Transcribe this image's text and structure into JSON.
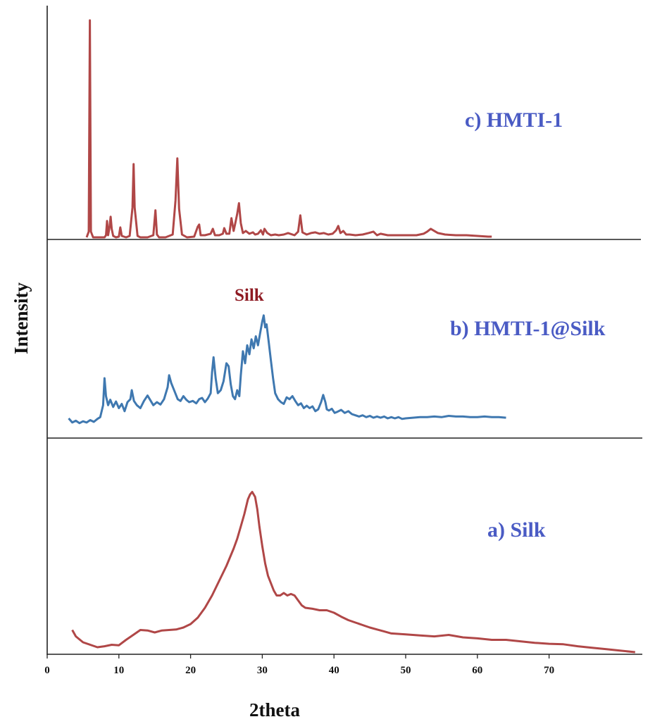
{
  "chart_data": {
    "type": "line",
    "xlabel": "2theta",
    "ylabel": "Intensity",
    "xlim": [
      0,
      83
    ],
    "x_ticks": [
      0,
      10,
      20,
      30,
      40,
      50,
      60,
      70
    ],
    "y_ticks_shown": false,
    "grid": false,
    "legend": "none",
    "layout": "stacked-panels",
    "series": [
      {
        "name": "c) HMTI-1",
        "panel": "top",
        "color": "#b04747",
        "label_color": "#4a5bc4",
        "x": [
          5.5,
          5.8,
          5.95,
          6.1,
          6.4,
          6.8,
          7.5,
          8.0,
          8.2,
          8.35,
          8.5,
          8.7,
          8.85,
          9.0,
          9.2,
          9.6,
          10.0,
          10.2,
          10.4,
          11.0,
          11.5,
          11.9,
          12.05,
          12.2,
          12.6,
          13.0,
          14.0,
          14.8,
          15.1,
          15.3,
          15.6,
          16.5,
          17.5,
          17.9,
          18.15,
          18.4,
          18.8,
          19.5,
          20.5,
          21.0,
          21.2,
          21.4,
          22.0,
          22.8,
          23.1,
          23.4,
          24.0,
          24.5,
          24.7,
          25.0,
          25.4,
          25.7,
          26.0,
          26.2,
          26.5,
          26.75,
          27.0,
          27.3,
          27.7,
          28.2,
          28.7,
          29.0,
          29.4,
          29.8,
          30.1,
          30.3,
          30.7,
          31.2,
          31.8,
          32.3,
          33.0,
          33.6,
          34.5,
          35.0,
          35.3,
          35.6,
          36.2,
          36.8,
          37.4,
          38.0,
          38.6,
          39.2,
          39.8,
          40.3,
          40.6,
          40.9,
          41.3,
          41.7,
          42.2,
          43.0,
          44.0,
          44.8,
          45.5,
          46.0,
          46.5,
          47.5,
          48.5,
          49.5,
          50.5,
          51.5,
          52.5,
          53.0,
          53.5,
          54.0,
          54.5,
          55.5,
          57.0,
          58.5,
          60.0,
          61.5,
          62.0
        ],
        "values": [
          0,
          0.8,
          30.5,
          0.8,
          0,
          0,
          0,
          0,
          0.3,
          2.3,
          0.3,
          1.5,
          2.9,
          1.2,
          0.2,
          0,
          0.1,
          1.4,
          0.2,
          0,
          0.2,
          4.2,
          10.3,
          4.2,
          0.2,
          0,
          0,
          0.3,
          3.8,
          0.4,
          0,
          0,
          0.4,
          5.2,
          11.1,
          4.0,
          0.4,
          0,
          0.1,
          1.5,
          1.8,
          0.3,
          0.3,
          0.5,
          1.2,
          0.3,
          0.3,
          0.5,
          1.3,
          0.5,
          0.5,
          2.7,
          0.9,
          1.8,
          3.3,
          4.8,
          2.0,
          0.6,
          0.9,
          0.5,
          0.7,
          0.4,
          0.5,
          1.0,
          0.4,
          1.2,
          0.6,
          0.3,
          0.4,
          0.3,
          0.4,
          0.6,
          0.3,
          0.8,
          3.1,
          0.7,
          0.4,
          0.6,
          0.7,
          0.5,
          0.6,
          0.4,
          0.5,
          1.0,
          1.6,
          0.6,
          0.9,
          0.4,
          0.4,
          0.3,
          0.4,
          0.6,
          0.8,
          0.3,
          0.5,
          0.3,
          0.3,
          0.3,
          0.3,
          0.3,
          0.5,
          0.8,
          1.2,
          0.9,
          0.6,
          0.4,
          0.3,
          0.3,
          0.2,
          0.1,
          0.1
        ]
      },
      {
        "name": "b) HMTI-1@Silk",
        "panel": "middle",
        "color": "#3f78b0",
        "label_color": "#4a5bc4",
        "x": [
          3.0,
          3.5,
          4.0,
          4.5,
          5.0,
          5.5,
          6.0,
          6.5,
          7.0,
          7.4,
          7.8,
          8.0,
          8.2,
          8.5,
          8.8,
          9.2,
          9.6,
          10.0,
          10.4,
          10.8,
          11.2,
          11.6,
          11.8,
          12.1,
          12.5,
          13.0,
          13.5,
          14.0,
          14.3,
          14.8,
          15.3,
          15.8,
          16.3,
          16.8,
          17.0,
          17.3,
          17.7,
          18.2,
          18.6,
          19.0,
          19.4,
          19.8,
          20.3,
          20.8,
          21.2,
          21.6,
          22.0,
          22.4,
          22.8,
          23.0,
          23.2,
          23.5,
          23.8,
          24.2,
          24.6,
          25.0,
          25.3,
          25.6,
          25.9,
          26.2,
          26.5,
          26.8,
          27.0,
          27.3,
          27.6,
          27.9,
          28.2,
          28.5,
          28.8,
          29.1,
          29.4,
          29.7,
          30.0,
          30.2,
          30.4,
          30.6,
          30.9,
          31.2,
          31.5,
          31.8,
          32.2,
          32.6,
          33.0,
          33.4,
          33.8,
          34.2,
          34.6,
          35.0,
          35.4,
          35.8,
          36.2,
          36.6,
          37.0,
          37.4,
          37.8,
          38.2,
          38.5,
          38.8,
          39.0,
          39.3,
          39.7,
          40.1,
          40.5,
          41.0,
          41.5,
          42.0,
          42.5,
          43.0,
          43.5,
          44.0,
          44.5,
          45.0,
          45.5,
          46.0,
          46.5,
          47.0,
          47.5,
          48.0,
          48.5,
          49.0,
          49.5,
          50.0,
          51.0,
          52.0,
          53.0,
          54.0,
          55.0,
          56.0,
          57.0,
          58.0,
          59.0,
          60.0,
          61.0,
          62.0,
          63.0,
          64.0
        ],
        "values": [
          1.3,
          0.6,
          0.9,
          0.5,
          0.8,
          0.6,
          1.0,
          0.7,
          1.2,
          1.5,
          3.5,
          8.0,
          5.0,
          3.5,
          4.4,
          3.2,
          4.1,
          3.0,
          3.7,
          2.5,
          4.0,
          4.5,
          6.0,
          4.2,
          3.5,
          3.0,
          4.2,
          5.1,
          4.5,
          3.5,
          4.0,
          3.6,
          4.5,
          6.5,
          8.5,
          7.2,
          6.0,
          4.5,
          4.2,
          5.0,
          4.4,
          4.0,
          4.2,
          3.8,
          4.5,
          4.7,
          4.0,
          4.6,
          5.5,
          9.0,
          11.5,
          8.0,
          5.5,
          6.0,
          7.5,
          10.5,
          10.0,
          7.0,
          5.0,
          4.5,
          6.0,
          5.0,
          8.5,
          12.5,
          10.5,
          13.5,
          12.0,
          14.5,
          13.0,
          15.0,
          13.5,
          15.5,
          17.5,
          18.5,
          16.5,
          17.0,
          14.0,
          11.0,
          8.0,
          5.5,
          4.5,
          4.0,
          3.7,
          4.8,
          4.5,
          5.0,
          4.2,
          3.5,
          3.8,
          3.0,
          3.4,
          3.0,
          3.3,
          2.5,
          2.8,
          4.0,
          5.2,
          4.0,
          2.8,
          2.6,
          2.9,
          2.2,
          2.4,
          2.7,
          2.2,
          2.5,
          2.0,
          1.8,
          1.6,
          1.8,
          1.5,
          1.7,
          1.4,
          1.6,
          1.4,
          1.6,
          1.3,
          1.5,
          1.3,
          1.5,
          1.2,
          1.3,
          1.4,
          1.5,
          1.5,
          1.6,
          1.5,
          1.7,
          1.6,
          1.6,
          1.5,
          1.5,
          1.6,
          1.5,
          1.5,
          1.4
        ]
      },
      {
        "name": "a) Silk",
        "panel": "bottom",
        "color": "#b04747",
        "label_color": "#4a5bc4",
        "x": [
          3.5,
          4.0,
          5.0,
          6.0,
          7.0,
          8.0,
          9.0,
          10.0,
          11.0,
          12.0,
          13.0,
          14.0,
          15.0,
          16.0,
          17.0,
          18.0,
          19.0,
          20.0,
          21.0,
          22.0,
          23.0,
          24.0,
          25.0,
          26.0,
          26.5,
          27.0,
          27.5,
          28.0,
          28.3,
          28.6,
          29.0,
          29.3,
          29.6,
          30.0,
          30.4,
          30.8,
          31.2,
          31.6,
          32.0,
          32.5,
          33.0,
          33.5,
          34.0,
          34.5,
          35.0,
          35.5,
          36.0,
          37.0,
          38.0,
          39.0,
          40.0,
          41.0,
          42.0,
          43.0,
          44.0,
          45.0,
          46.0,
          47.0,
          48.0,
          50.0,
          52.0,
          54.0,
          56.0,
          58.0,
          60.0,
          62.0,
          64.0,
          66.0,
          68.0,
          70.0,
          72.0,
          74.0,
          76.0,
          78.0,
          80.0,
          82.0
        ],
        "values": [
          4.5,
          3.2,
          2.0,
          1.5,
          1.0,
          1.2,
          1.5,
          1.4,
          2.5,
          3.5,
          4.5,
          4.4,
          4.0,
          4.4,
          4.5,
          4.6,
          5.0,
          5.7,
          7.0,
          9.0,
          11.5,
          14.5,
          17.5,
          21.0,
          23.0,
          25.5,
          28.0,
          31.0,
          32.0,
          32.5,
          31.5,
          29.0,
          25.5,
          21.5,
          18.0,
          15.5,
          14.0,
          12.5,
          11.5,
          11.5,
          12.0,
          11.5,
          11.8,
          11.5,
          10.5,
          9.5,
          9.0,
          8.8,
          8.5,
          8.5,
          8.0,
          7.2,
          6.5,
          6.0,
          5.5,
          5.0,
          4.6,
          4.2,
          3.8,
          3.6,
          3.4,
          3.2,
          3.5,
          3.0,
          2.8,
          2.5,
          2.5,
          2.2,
          1.9,
          1.7,
          1.6,
          1.2,
          0.9,
          0.6,
          0.3,
          0.0
        ]
      }
    ],
    "annotations": [
      {
        "text": "Silk",
        "panel": "middle",
        "x": 30.5,
        "color": "#8e1a22"
      }
    ]
  }
}
